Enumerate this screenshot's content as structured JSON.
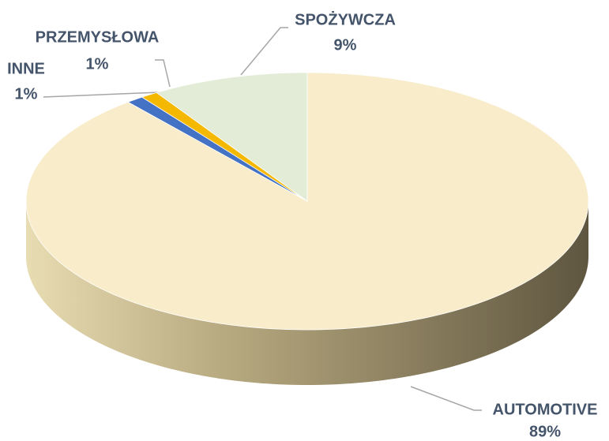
{
  "chart_data": {
    "type": "pie3d",
    "categories": [
      "AUTOMOTIVE",
      "INNE",
      "PRZEMYSŁOWA",
      "SPOŻYWCZA"
    ],
    "values": [
      89,
      1,
      1,
      9
    ],
    "value_labels": [
      "89%",
      "1%",
      "1%",
      "9%"
    ],
    "colors": [
      "#f8ecca",
      "#4472c4",
      "#f5b800",
      "#e2ecd6"
    ]
  }
}
